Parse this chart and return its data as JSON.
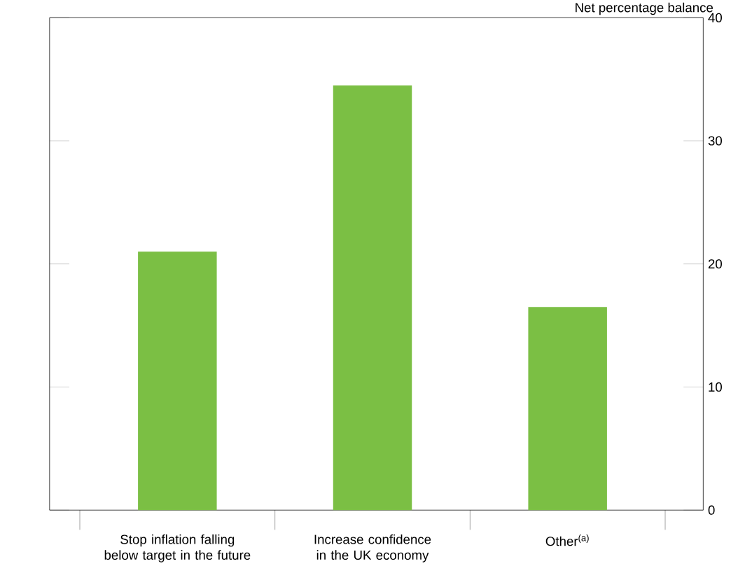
{
  "chart_data": {
    "type": "bar",
    "ylabel": "Net percentage balance",
    "categories": [
      "Stop inflation falling below target in the future",
      "Increase confidence in the UK economy",
      "Other$^{(a)}$"
    ],
    "values": [
      21,
      34.5,
      16.5
    ],
    "color": "#7bbf44",
    "ylim": [
      0,
      40
    ],
    "yticks": [
      0,
      10,
      20,
      30,
      40
    ],
    "grid": false
  }
}
